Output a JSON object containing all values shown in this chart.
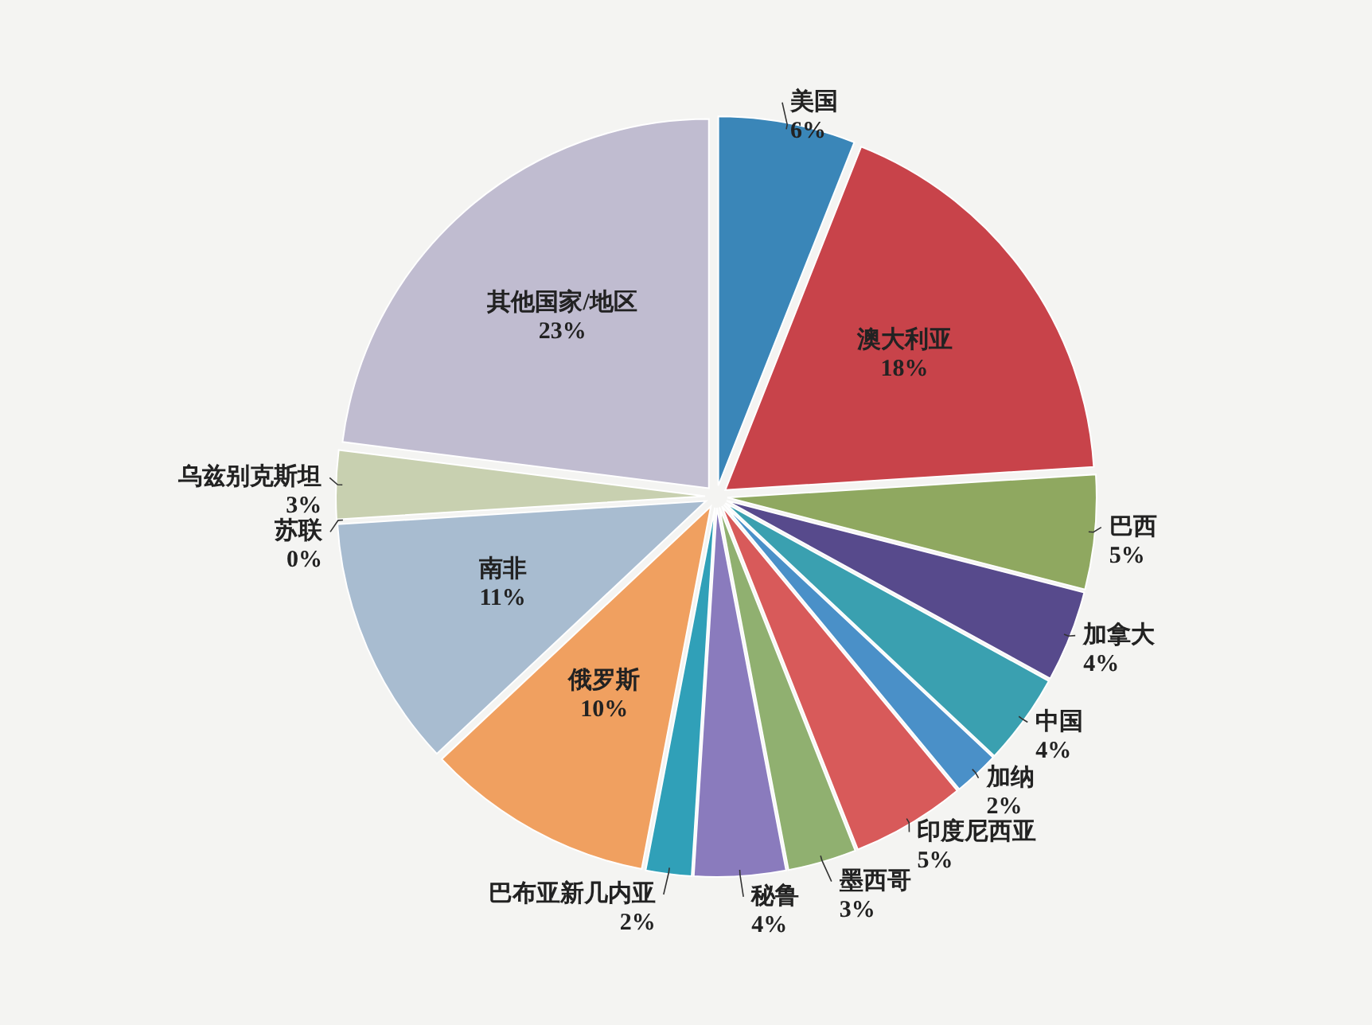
{
  "chart_data": {
    "type": "pie",
    "categories": [
      "美国",
      "澳大利亚",
      "巴西",
      "加拿大",
      "中国",
      "加纳",
      "印度尼西亚",
      "墨西哥",
      "秘鲁",
      "巴布亚新几内亚",
      "俄罗斯",
      "南非",
      "苏联",
      "乌兹别克斯坦",
      "其他国家/地区"
    ],
    "values": [
      6,
      18,
      5,
      4,
      4,
      2,
      5,
      3,
      4,
      2,
      10,
      11,
      0,
      3,
      23
    ],
    "value_labels": [
      "6%",
      "18%",
      "5%",
      "4%",
      "4%",
      "2%",
      "5%",
      "3%",
      "4%",
      "2%",
      "10%",
      "11%",
      "0%",
      "3%",
      "23%"
    ],
    "colors": [
      "#3a86b8",
      "#c8434a",
      "#8fa860",
      "#574a8c",
      "#3aa0b0",
      "#4a90c8",
      "#d85a5a",
      "#90b070",
      "#8a7bbd",
      "#30a0b8",
      "#f0a060",
      "#a8bcd0",
      "#303040",
      "#c8d0b0",
      "#c0bcd0"
    ]
  }
}
